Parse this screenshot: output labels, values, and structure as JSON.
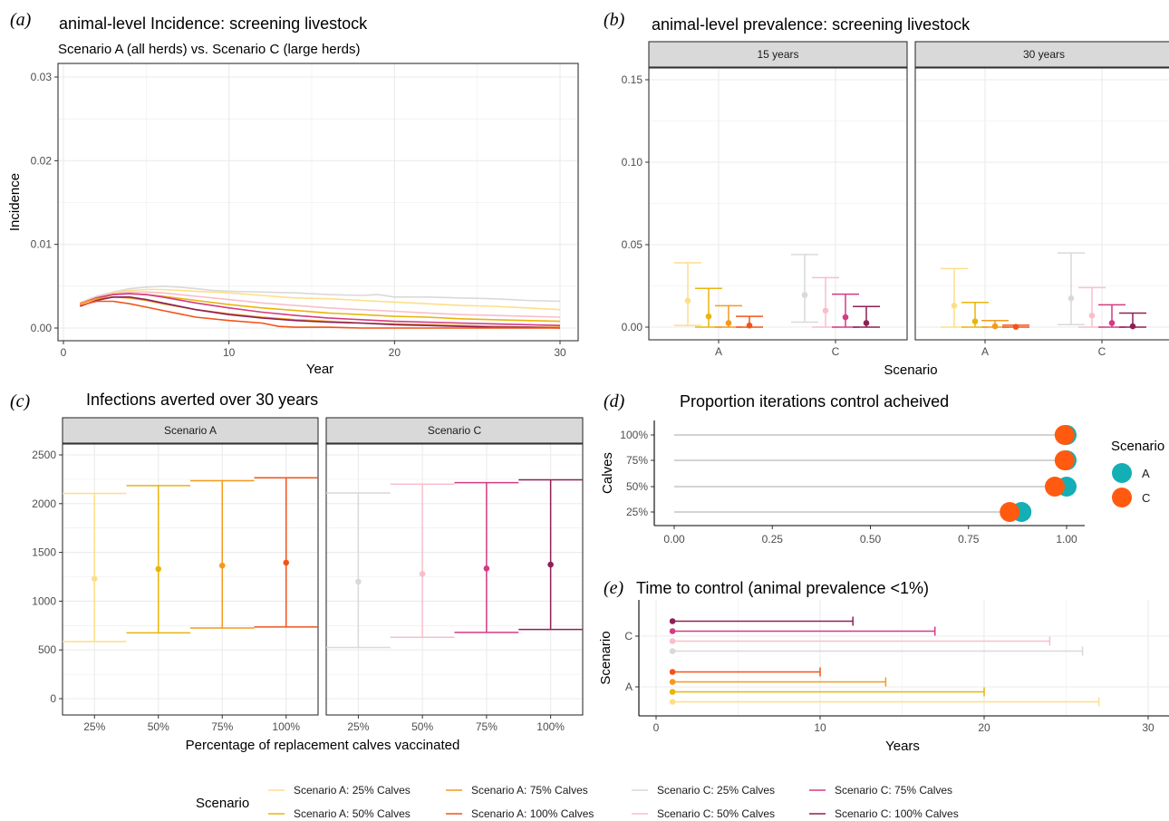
{
  "colors": {
    "A25": "#FDDE8A",
    "A50": "#E9B50C",
    "A75": "#F39A1C",
    "A100": "#F1541A",
    "C25": "#D9D9D9",
    "C50": "#F7BFCB",
    "C75": "#D33B83",
    "C100": "#8C2157",
    "teal": "#14AEB5",
    "orange": "#FF5A0F"
  },
  "legend": {
    "title": "Scenario",
    "items": [
      {
        "key": "A25",
        "label": "Scenario A: 25% Calves"
      },
      {
        "key": "A50",
        "label": "Scenario A: 50% Calves"
      },
      {
        "key": "A75",
        "label": "Scenario A: 75% Calves"
      },
      {
        "key": "A100",
        "label": "Scenario A: 100% Calves"
      },
      {
        "key": "C25",
        "label": "Scenario C: 25% Calves"
      },
      {
        "key": "C50",
        "label": "Scenario C: 50% Calves"
      },
      {
        "key": "C75",
        "label": "Scenario C: 75% Calves"
      },
      {
        "key": "C100",
        "label": "Scenario C: 100% Calves"
      }
    ]
  },
  "chart_data": [
    {
      "panel": "(a)",
      "type": "line",
      "title": "animal-level Incidence: screening livestock",
      "subtitle": "Scenario A (all herds) vs. Scenario C (large herds)",
      "xlabel": "Year",
      "ylabel": "Incidence",
      "xlim": [
        0,
        30
      ],
      "ylim": [
        0,
        0.03
      ],
      "x_ticks": [
        0,
        10,
        20,
        30
      ],
      "y_ticks": [
        "0.00",
        "0.01",
        "0.02",
        "0.03"
      ],
      "series": [
        {
          "key": "C25",
          "x": [
            1,
            2,
            3,
            4,
            5,
            6,
            7,
            8,
            9,
            10,
            12,
            14,
            16,
            18,
            19,
            20,
            22,
            24,
            26,
            28,
            30
          ],
          "y": [
            0.003,
            0.0038,
            0.0043,
            0.0047,
            0.0049,
            0.005,
            0.0049,
            0.0047,
            0.0045,
            0.0044,
            0.0043,
            0.0042,
            0.004,
            0.0039,
            0.004,
            0.0037,
            0.0037,
            0.0036,
            0.0035,
            0.0033,
            0.0032
          ]
        },
        {
          "key": "A25",
          "x": [
            1,
            2,
            3,
            4,
            5,
            6,
            7,
            8,
            10,
            12,
            14,
            16,
            18,
            20,
            22,
            24,
            26,
            28,
            30
          ],
          "y": [
            0.003,
            0.0037,
            0.0042,
            0.0045,
            0.0046,
            0.0046,
            0.0045,
            0.0044,
            0.0042,
            0.0039,
            0.0036,
            0.0035,
            0.0033,
            0.0031,
            0.0029,
            0.0027,
            0.0026,
            0.0024,
            0.0022
          ]
        },
        {
          "key": "C50",
          "x": [
            1,
            2,
            3,
            4,
            5,
            6,
            8,
            10,
            12,
            14,
            16,
            18,
            20,
            22,
            24,
            26,
            28,
            30
          ],
          "y": [
            0.003,
            0.0037,
            0.0041,
            0.0043,
            0.0043,
            0.0042,
            0.0038,
            0.0034,
            0.003,
            0.0027,
            0.0024,
            0.0022,
            0.002,
            0.0018,
            0.0016,
            0.0015,
            0.0014,
            0.0013
          ]
        },
        {
          "key": "A50",
          "x": [
            1,
            2,
            3,
            4,
            5,
            6,
            8,
            10,
            12,
            14,
            16,
            18,
            20,
            22,
            24,
            26,
            28,
            30
          ],
          "y": [
            0.0029,
            0.0036,
            0.004,
            0.0041,
            0.004,
            0.0038,
            0.0033,
            0.0028,
            0.0024,
            0.0021,
            0.0018,
            0.0016,
            0.0014,
            0.0013,
            0.0011,
            0.001,
            0.0009,
            0.0008
          ]
        },
        {
          "key": "C75",
          "x": [
            1,
            2,
            3,
            4,
            5,
            6,
            8,
            10,
            12,
            14,
            16,
            18,
            20,
            22,
            24,
            26,
            28,
            30
          ],
          "y": [
            0.0029,
            0.0036,
            0.004,
            0.0041,
            0.004,
            0.0037,
            0.003,
            0.0024,
            0.0019,
            0.0015,
            0.0012,
            0.001,
            0.0008,
            0.0007,
            0.0006,
            0.0005,
            0.0004,
            0.0003
          ]
        },
        {
          "key": "A75",
          "x": [
            1,
            2,
            3,
            4,
            5,
            6,
            8,
            10,
            12,
            14,
            16,
            18,
            20,
            22,
            24,
            26,
            28,
            30
          ],
          "y": [
            0.0029,
            0.0035,
            0.0037,
            0.0036,
            0.0033,
            0.0029,
            0.0022,
            0.0017,
            0.0013,
            0.001,
            0.0008,
            0.0006,
            0.0005,
            0.0004,
            0.0003,
            0.0002,
            0.0001,
            0.0001
          ]
        },
        {
          "key": "C100",
          "x": [
            1,
            2,
            3,
            4,
            5,
            6,
            8,
            10,
            12,
            14,
            16,
            18,
            20,
            22,
            24,
            26,
            28,
            30
          ],
          "y": [
            0.0026,
            0.0033,
            0.0037,
            0.0037,
            0.0034,
            0.003,
            0.0022,
            0.0016,
            0.0012,
            0.0009,
            0.0007,
            0.0006,
            0.0004,
            0.0003,
            0.0002,
            0.0001,
            0.0001,
            0.0
          ]
        },
        {
          "key": "A100",
          "x": [
            1,
            2,
            3,
            4,
            5,
            6,
            7,
            8,
            10,
            12,
            13,
            14,
            16,
            18,
            20,
            22,
            24,
            26,
            28,
            30
          ],
          "y": [
            0.0027,
            0.0032,
            0.0032,
            0.0029,
            0.0025,
            0.0021,
            0.0017,
            0.0013,
            0.0009,
            0.0006,
            0.0002,
            0.0001,
            0.0001,
            0.0,
            0.0,
            0.0,
            0.0,
            0.0,
            0.0,
            0.0
          ]
        }
      ]
    },
    {
      "panel": "(b)",
      "type": "scatter",
      "title": "animal-level prevalence: screening livestock",
      "xlabel": "Scenario",
      "ylim": [
        0,
        0.15
      ],
      "y_ticks": [
        "0.00",
        "0.05",
        "0.10",
        "0.15"
      ],
      "facets": [
        "15 years",
        "30 years"
      ],
      "categories": [
        "A",
        "C"
      ],
      "series": [
        {
          "facet": "15 years",
          "key": "A25",
          "x": "A",
          "mid": 0.016,
          "low": 0.001,
          "high": 0.039
        },
        {
          "facet": "15 years",
          "key": "A50",
          "x": "A",
          "mid": 0.0065,
          "low": 0.0,
          "high": 0.0235
        },
        {
          "facet": "15 years",
          "key": "A75",
          "x": "A",
          "mid": 0.0025,
          "low": 0.0,
          "high": 0.013
        },
        {
          "facet": "15 years",
          "key": "A100",
          "x": "A",
          "mid": 0.001,
          "low": 0.0,
          "high": 0.0065
        },
        {
          "facet": "15 years",
          "key": "C25",
          "x": "C",
          "mid": 0.0195,
          "low": 0.003,
          "high": 0.044
        },
        {
          "facet": "15 years",
          "key": "C50",
          "x": "C",
          "mid": 0.01,
          "low": 0.0,
          "high": 0.03
        },
        {
          "facet": "15 years",
          "key": "C75",
          "x": "C",
          "mid": 0.006,
          "low": 0.0,
          "high": 0.02
        },
        {
          "facet": "15 years",
          "key": "C100",
          "x": "C",
          "mid": 0.0025,
          "low": 0.0,
          "high": 0.0125
        },
        {
          "facet": "30 years",
          "key": "A25",
          "x": "A",
          "mid": 0.013,
          "low": 0.0,
          "high": 0.0355
        },
        {
          "facet": "30 years",
          "key": "A50",
          "x": "A",
          "mid": 0.0035,
          "low": 0.0,
          "high": 0.015
        },
        {
          "facet": "30 years",
          "key": "A75",
          "x": "A",
          "mid": 0.0005,
          "low": 0.0,
          "high": 0.004
        },
        {
          "facet": "30 years",
          "key": "A100",
          "x": "A",
          "mid": 0.0002,
          "low": 0.0,
          "high": 0.0012
        },
        {
          "facet": "30 years",
          "key": "C25",
          "x": "C",
          "mid": 0.0175,
          "low": 0.0015,
          "high": 0.045
        },
        {
          "facet": "30 years",
          "key": "C50",
          "x": "C",
          "mid": 0.007,
          "low": 0.0,
          "high": 0.024
        },
        {
          "facet": "30 years",
          "key": "C75",
          "x": "C",
          "mid": 0.0025,
          "low": 0.0,
          "high": 0.0135
        },
        {
          "facet": "30 years",
          "key": "C100",
          "x": "C",
          "mid": 0.0005,
          "low": 0.0,
          "high": 0.0085
        }
      ]
    },
    {
      "panel": "(c)",
      "type": "scatter",
      "title": "Infections averted over 30 years",
      "xlabel": "Percentage of replacement calves vaccinated",
      "ylim": [
        -100,
        2600
      ],
      "y_ticks": [
        0,
        500,
        1000,
        1500,
        2000,
        2500
      ],
      "facets": [
        "Scenario A",
        "Scenario C"
      ],
      "categories": [
        "25%",
        "50%",
        "75%",
        "100%"
      ],
      "series": [
        {
          "facet": "Scenario A",
          "key": "A25",
          "x": "25%",
          "mid": 1230,
          "low": 585,
          "high": 2105
        },
        {
          "facet": "Scenario A",
          "key": "A50",
          "x": "50%",
          "mid": 1330,
          "low": 675,
          "high": 2185
        },
        {
          "facet": "Scenario A",
          "key": "A75",
          "x": "75%",
          "mid": 1365,
          "low": 725,
          "high": 2235
        },
        {
          "facet": "Scenario A",
          "key": "A100",
          "x": "100%",
          "mid": 1395,
          "low": 735,
          "high": 2265
        },
        {
          "facet": "Scenario C",
          "key": "C25",
          "x": "25%",
          "mid": 1200,
          "low": 525,
          "high": 2110
        },
        {
          "facet": "Scenario C",
          "key": "C50",
          "x": "50%",
          "mid": 1280,
          "low": 630,
          "high": 2200
        },
        {
          "facet": "Scenario C",
          "key": "C75",
          "x": "75%",
          "mid": 1335,
          "low": 680,
          "high": 2215
        },
        {
          "facet": "Scenario C",
          "key": "C100",
          "x": "100%",
          "mid": 1375,
          "low": 710,
          "high": 2245
        }
      ]
    },
    {
      "panel": "(d)",
      "type": "scatter",
      "title": "Proportion iterations control acheived",
      "ylabel": "Calves",
      "xlim": [
        0,
        1
      ],
      "x_ticks": [
        "0.00",
        "0.25",
        "0.50",
        "0.75",
        "1.00"
      ],
      "categories": [
        "25%",
        "50%",
        "75%",
        "100%"
      ],
      "legend_title": "Scenario",
      "series": [
        {
          "name": "A",
          "color_key": "teal",
          "values": [
            0.885,
            1.0,
            1.0,
            1.0
          ]
        },
        {
          "name": "C",
          "color_key": "orange",
          "values": [
            0.855,
            0.97,
            0.995,
            0.995
          ]
        }
      ]
    },
    {
      "panel": "(e)",
      "type": "bar",
      "title": "Time to control (animal prevalence <1%)",
      "xlabel": "Years",
      "ylabel": "Scenario",
      "xlim": [
        0,
        30
      ],
      "x_ticks": [
        0,
        10,
        20,
        30
      ],
      "categories": [
        "A",
        "C"
      ],
      "series": [
        {
          "key": "A25",
          "group": "A",
          "start": 1,
          "end": 27
        },
        {
          "key": "A50",
          "group": "A",
          "start": 1,
          "end": 20
        },
        {
          "key": "A75",
          "group": "A",
          "start": 1,
          "end": 14
        },
        {
          "key": "A100",
          "group": "A",
          "start": 1,
          "end": 10
        },
        {
          "key": "C25",
          "group": "C",
          "start": 1,
          "end": 26
        },
        {
          "key": "C50",
          "group": "C",
          "start": 1,
          "end": 24
        },
        {
          "key": "C75",
          "group": "C",
          "start": 1,
          "end": 17
        },
        {
          "key": "C100",
          "group": "C",
          "start": 1,
          "end": 12
        }
      ]
    }
  ]
}
